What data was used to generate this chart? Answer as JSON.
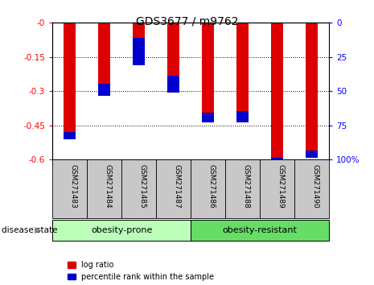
{
  "title": "GDS3677 / m9762",
  "samples": [
    "GSM271483",
    "GSM271484",
    "GSM271485",
    "GSM271487",
    "GSM271486",
    "GSM271488",
    "GSM271489",
    "GSM271490"
  ],
  "log_ratio": [
    -0.51,
    -0.32,
    -0.185,
    -0.305,
    -0.435,
    -0.435,
    -0.598,
    -0.592
  ],
  "percentile": [
    5,
    9,
    20,
    12,
    7,
    8,
    1,
    5
  ],
  "ylim_left": [
    -0.6,
    0.0
  ],
  "ylim_right": [
    0,
    100
  ],
  "yticks_left": [
    0,
    -0.15,
    -0.3,
    -0.45,
    -0.6
  ],
  "ytick_labels_left": [
    "-0",
    "-0.15",
    "-0.3",
    "-0.45",
    "-0.6"
  ],
  "yticks_right": [
    100,
    75,
    50,
    25,
    0
  ],
  "ytick_labels_right": [
    "100%",
    "75",
    "50",
    "25",
    "0"
  ],
  "groups": [
    {
      "label": "obesity-prone",
      "start": 0,
      "end": 4,
      "color": "#bbffbb"
    },
    {
      "label": "obesity-resistant",
      "start": 4,
      "end": 8,
      "color": "#66dd66"
    }
  ],
  "bar_width": 0.35,
  "red_color": "#dd0000",
  "blue_color": "#0000cc",
  "bg_color": "#c8c8c8",
  "group_label": "disease state",
  "legend_items": [
    "log ratio",
    "percentile rank within the sample"
  ]
}
